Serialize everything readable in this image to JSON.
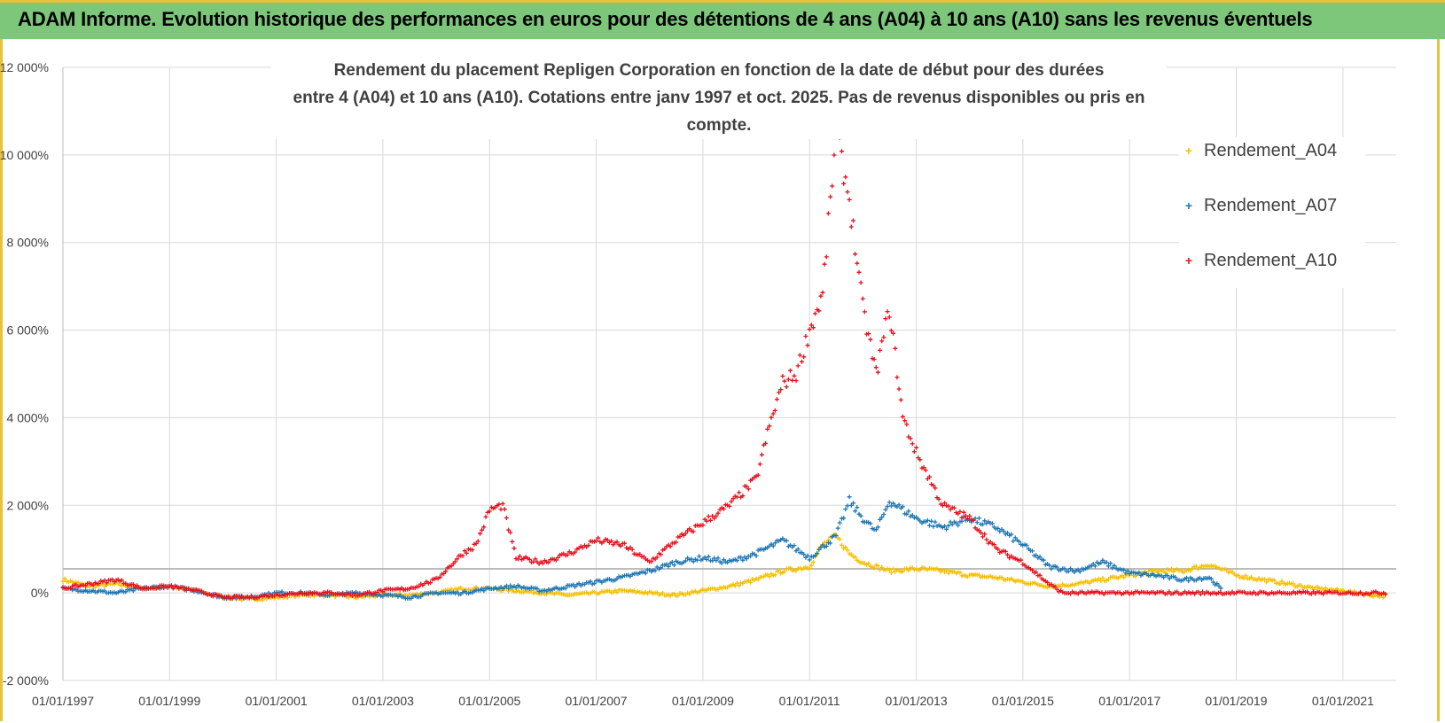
{
  "header": {
    "title": "ADAM Informe. Evolution historique des performances en euros pour des détentions de 4 ans (A04) à 10 ans (A10) sans les revenus éventuels"
  },
  "colors": {
    "header_bg": "#7cc77a",
    "A04": "#f5c000",
    "A07": "#1f77b4",
    "A10": "#e8101c"
  },
  "chart_data": {
    "type": "scatter",
    "title_line1": "Rendement du placement Repligen Corporation en fonction de la date de début pour des durées",
    "title_line2": "entre 4 (A04) et 10 ans (A10). Cotations entre janv 1997 et oct. 2025. Pas de revenus disponibles ou pris en compte.",
    "xlabel": "",
    "ylabel": "",
    "ylim": [
      -2000,
      12000
    ],
    "xlim": [
      "1997-01-01",
      "2022-01-01"
    ],
    "y_ticks": [
      -2000,
      0,
      2000,
      4000,
      6000,
      8000,
      10000,
      12000
    ],
    "y_tick_labels": [
      "-2 000%",
      "0%",
      "2 000%",
      "4 000%",
      "6 000%",
      "8 000%",
      "10 000%",
      "12 000%"
    ],
    "x_tick_labels": [
      "01/01/1997",
      "01/01/1999",
      "01/01/2001",
      "01/01/2003",
      "01/01/2005",
      "01/01/2007",
      "01/01/2009",
      "01/01/2011",
      "01/01/2013",
      "01/01/2015",
      "01/01/2017",
      "01/01/2019",
      "01/01/2021"
    ],
    "reference_line": 550,
    "grid": true,
    "legend_position": "right",
    "series": [
      {
        "name": "Rendement_A04",
        "x": [
          "1997-01-01",
          "1997-07-01",
          "1998-01-01",
          "1998-07-01",
          "1999-01-01",
          "1999-07-01",
          "2000-01-01",
          "2000-07-01",
          "2001-01-01",
          "2001-07-01",
          "2002-01-01",
          "2002-07-01",
          "2003-01-01",
          "2003-07-01",
          "2004-01-01",
          "2004-07-01",
          "2005-01-01",
          "2005-07-01",
          "2006-01-01",
          "2006-07-01",
          "2007-01-01",
          "2007-07-01",
          "2008-01-01",
          "2008-07-01",
          "2009-01-01",
          "2009-07-01",
          "2010-01-01",
          "2010-07-01",
          "2011-01-01",
          "2011-04-01",
          "2011-07-01",
          "2011-10-01",
          "2012-01-01",
          "2012-07-01",
          "2013-01-01",
          "2013-07-01",
          "2014-01-01",
          "2014-07-01",
          "2015-01-01",
          "2015-07-01",
          "2016-01-01",
          "2016-07-01",
          "2017-01-01",
          "2017-07-01",
          "2018-01-01",
          "2018-07-01",
          "2019-01-01",
          "2019-07-01",
          "2020-01-01",
          "2020-07-01",
          "2021-01-01",
          "2021-07-01",
          "2021-11-01"
        ],
        "y": [
          300,
          150,
          200,
          100,
          150,
          50,
          -100,
          -150,
          -100,
          -50,
          -50,
          -100,
          -50,
          -50,
          0,
          100,
          100,
          50,
          0,
          -50,
          0,
          50,
          0,
          -50,
          50,
          150,
          300,
          500,
          600,
          1100,
          1300,
          900,
          700,
          500,
          550,
          500,
          400,
          350,
          250,
          150,
          200,
          300,
          400,
          500,
          500,
          650,
          400,
          300,
          200,
          100,
          50,
          -50,
          -80
        ]
      },
      {
        "name": "Rendement_A07",
        "x": [
          "1997-01-01",
          "1997-07-01",
          "1998-01-01",
          "1998-07-01",
          "1999-01-01",
          "1999-07-01",
          "2000-01-01",
          "2000-07-01",
          "2001-01-01",
          "2001-07-01",
          "2002-01-01",
          "2002-07-01",
          "2003-01-01",
          "2003-07-01",
          "2004-01-01",
          "2004-07-01",
          "2005-01-01",
          "2005-07-01",
          "2006-01-01",
          "2006-07-01",
          "2007-01-01",
          "2007-07-01",
          "2008-01-01",
          "2008-07-01",
          "2009-01-01",
          "2009-07-01",
          "2010-01-01",
          "2010-07-01",
          "2011-01-01",
          "2011-07-01",
          "2011-10-01",
          "2012-01-01",
          "2012-04-01",
          "2012-07-01",
          "2013-01-01",
          "2013-07-01",
          "2014-01-01",
          "2014-07-01",
          "2015-01-01",
          "2015-07-01",
          "2016-01-01",
          "2016-07-01",
          "2017-01-01",
          "2017-07-01",
          "2018-01-01",
          "2018-07-01",
          "2018-10-01"
        ],
        "y": [
          100,
          50,
          0,
          100,
          150,
          50,
          -100,
          -100,
          0,
          0,
          -50,
          0,
          -50,
          -100,
          0,
          0,
          100,
          150,
          50,
          150,
          250,
          350,
          500,
          700,
          800,
          700,
          900,
          1200,
          800,
          1300,
          2100,
          1700,
          1400,
          2100,
          1700,
          1500,
          1700,
          1500,
          1100,
          600,
          500,
          700,
          450,
          400,
          300,
          350,
          50
        ]
      },
      {
        "name": "Rendement_A10",
        "x": [
          "1997-01-01",
          "1997-07-01",
          "1998-01-01",
          "1998-07-01",
          "1999-01-01",
          "1999-07-01",
          "2000-01-01",
          "2000-07-01",
          "2001-01-01",
          "2001-07-01",
          "2002-01-01",
          "2002-07-01",
          "2003-01-01",
          "2003-07-01",
          "2004-01-01",
          "2004-07-01",
          "2004-10-01",
          "2005-01-01",
          "2005-04-01",
          "2005-07-01",
          "2006-01-01",
          "2006-07-01",
          "2007-01-01",
          "2007-07-01",
          "2008-01-01",
          "2008-07-01",
          "2009-01-01",
          "2009-07-01",
          "2010-01-01",
          "2010-04-01",
          "2010-07-01",
          "2010-10-01",
          "2011-01-01",
          "2011-04-01",
          "2011-07-01",
          "2011-10-01",
          "2012-01-01",
          "2012-04-01",
          "2012-07-01",
          "2012-10-01",
          "2013-01-01",
          "2013-07-01",
          "2014-01-01",
          "2014-07-01",
          "2015-01-01",
          "2015-07-01",
          "2015-10-01",
          "2016-01-01",
          "2017-01-01",
          "2018-01-01",
          "2019-01-01",
          "2020-01-01",
          "2021-01-01",
          "2021-11-01"
        ],
        "y": [
          100,
          200,
          300,
          100,
          150,
          50,
          -100,
          -100,
          -50,
          0,
          0,
          -50,
          50,
          100,
          300,
          900,
          1100,
          1900,
          2000,
          800,
          700,
          900,
          1200,
          1100,
          700,
          1200,
          1600,
          2000,
          2600,
          3800,
          4800,
          5000,
          6000,
          6800,
          10500,
          9000,
          6500,
          5000,
          6500,
          4000,
          3200,
          2000,
          1700,
          1000,
          700,
          200,
          0,
          0,
          0,
          0,
          0,
          0,
          0,
          0
        ]
      }
    ]
  }
}
